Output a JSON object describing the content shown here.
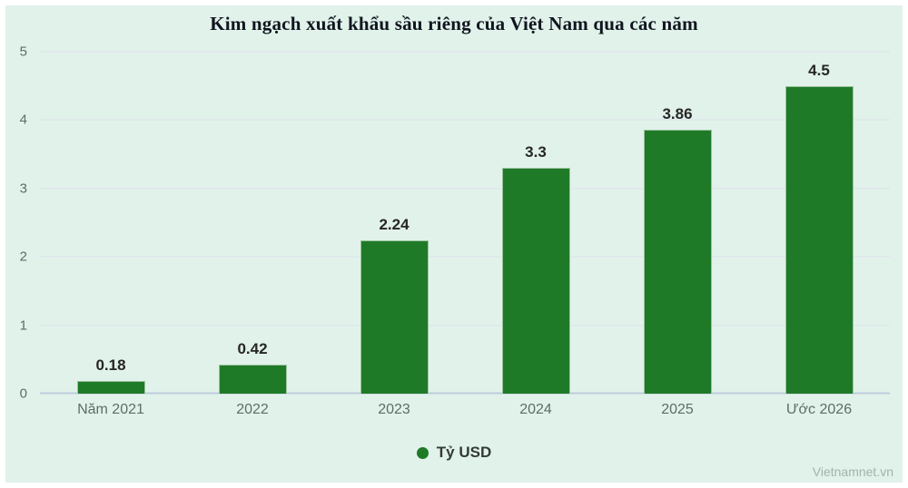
{
  "title": "Kim ngạch xuất khẩu sầu riêng của Việt Nam qua các năm",
  "watermark": "Vietnamnet.vn",
  "legend": {
    "label": "Tỷ USD"
  },
  "colors": {
    "background": "#e1f2ea",
    "bar": "#1f7a28",
    "gridline": "#dde2ec",
    "baseline": "#bfcbdd",
    "axis_text": "#5d6d6a",
    "value_text": "#262626",
    "title_text": "#10151f",
    "watermark_text": "#a3b2ae"
  },
  "chart_data": {
    "type": "bar",
    "title": "Kim ngạch xuất khẩu sầu riêng của Việt Nam qua các năm",
    "categories": [
      "Năm 2021",
      "2022",
      "2023",
      "2024",
      "2025",
      "Ước 2026"
    ],
    "values": [
      0.18,
      0.42,
      2.24,
      3.3,
      3.86,
      4.5
    ],
    "value_labels": [
      "0.18",
      "0.42",
      "2.24",
      "3.3",
      "3.86",
      "4.5"
    ],
    "series_name": "Tỷ USD",
    "xlabel": "",
    "ylabel": "Tỷ USD",
    "ylim": [
      0,
      5
    ],
    "yticks": [
      0,
      1,
      2,
      3,
      4,
      5
    ],
    "grid": true,
    "legend_position": "bottom"
  }
}
